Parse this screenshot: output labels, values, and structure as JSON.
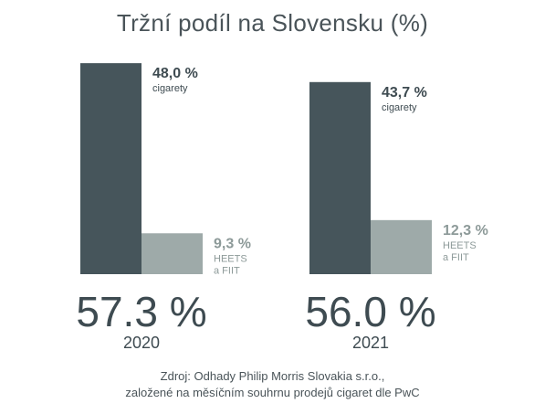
{
  "title": "Tržní podíl na Slovensku (%)",
  "colors": {
    "cigarettes": "#46555b",
    "heets": "#9eaaa9",
    "text_dark": "#3e4b51",
    "text_light": "#8d9a99"
  },
  "chart_data": {
    "type": "bar",
    "title": "Tržní podíl na Slovensku (%)",
    "categories": [
      "2020",
      "2021"
    ],
    "totals": [
      "57.3 %",
      "56.0 %"
    ],
    "series": [
      {
        "name": "cigarety",
        "values": [
          48.0,
          43.7
        ],
        "labels": [
          "48,0 %",
          "43,7 %"
        ]
      },
      {
        "name": "HEETS a FIIT",
        "name_lines": [
          "HEETS",
          "a FIIT"
        ],
        "values": [
          9.3,
          12.3
        ],
        "labels": [
          "9,3 %",
          "12,3 %"
        ]
      }
    ]
  },
  "source": {
    "line1": "Zdroj: Odhady Philip Morris Slovakia s.r.o.,",
    "line2": "založené na měsíčním souhrnu prodejů cigaret dle PwC"
  }
}
